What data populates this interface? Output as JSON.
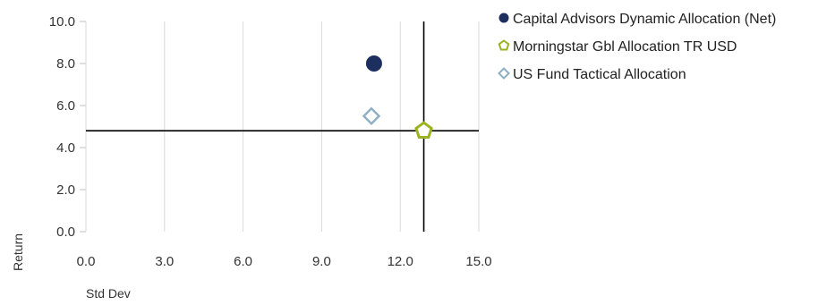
{
  "chart_data": {
    "type": "scatter",
    "xlabel": "Std Dev",
    "ylabel": "Return",
    "xlim": [
      0,
      15
    ],
    "ylim": [
      0,
      10
    ],
    "x_ticks": [
      "0.0",
      "3.0",
      "6.0",
      "9.0",
      "12.0",
      "15.0"
    ],
    "y_ticks": [
      "0.0",
      "2.0",
      "4.0",
      "6.0",
      "8.0",
      "10.0"
    ],
    "grid": "vertical",
    "legend_position": "top-right",
    "reference_lines": {
      "x": 12.9,
      "y": 4.8
    },
    "series": [
      {
        "name": "Capital Advisors Dynamic Allocation (Net)",
        "x": 11.0,
        "y": 8.0,
        "marker": "circle",
        "color": "#1c2f5e"
      },
      {
        "name": "Morningstar Gbl Allocation TR USD",
        "x": 12.9,
        "y": 4.8,
        "marker": "pentagon",
        "color": "#9cb320"
      },
      {
        "name": "US Fund Tactical Allocation",
        "x": 10.9,
        "y": 5.5,
        "marker": "diamond",
        "color": "#8fb0c4"
      }
    ]
  }
}
